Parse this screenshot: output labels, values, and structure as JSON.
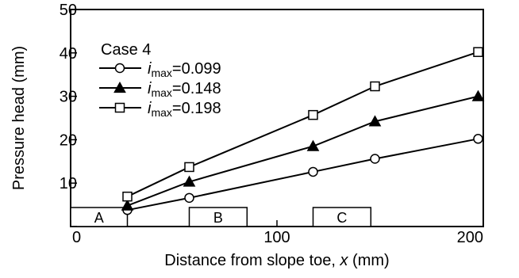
{
  "chart_data": {
    "type": "line",
    "title": "",
    "xlabel": "Distance from slope toe, x (mm)",
    "xlabel_prefix": "Distance from slope toe, ",
    "xlabel_var": "x",
    "xlabel_suffix": " (mm)",
    "ylabel": "Pressure head (mm)",
    "xlim": [
      0,
      200
    ],
    "ylim": [
      0,
      50
    ],
    "x_ticks": [
      0,
      100,
      200
    ],
    "y_ticks": [
      0,
      10,
      20,
      30,
      40,
      50
    ],
    "x_tick_labels": [
      "0",
      "100",
      "200"
    ],
    "y_tick_labels": [
      "",
      "10",
      "20",
      "30",
      "40",
      "50"
    ],
    "grid": false,
    "legend_title": "Case 4",
    "legend_position": "top-left",
    "series": [
      {
        "name": "imax=0.099",
        "label_main": "i",
        "label_sub": "max",
        "label_tail": "=0.099",
        "marker": "circle-open",
        "x": [
          27.5,
          57.5,
          117.5,
          147.5,
          197.5
        ],
        "y": [
          3.8,
          6.6,
          12.6,
          15.6,
          20.2
        ]
      },
      {
        "name": "imax=0.148",
        "label_main": "i",
        "label_sub": "max",
        "label_tail": "=0.148",
        "marker": "triangle-filled",
        "x": [
          27.5,
          57.5,
          117.5,
          147.5,
          197.5
        ],
        "y": [
          4.8,
          10.3,
          18.5,
          24.2,
          30.0
        ]
      },
      {
        "name": "imax=0.198",
        "label_main": "i",
        "label_sub": "max",
        "label_tail": "=0.198",
        "marker": "square-open",
        "x": [
          27.5,
          57.5,
          117.5,
          147.5,
          197.5
        ],
        "y": [
          6.9,
          13.7,
          25.7,
          32.3,
          40.2
        ]
      }
    ],
    "zones": [
      {
        "label": "A",
        "x_start": 0,
        "x_end": 27.5
      },
      {
        "label": "B",
        "x_start": 57.5,
        "x_end": 85.5
      },
      {
        "label": "C",
        "x_start": 117.5,
        "x_end": 145.5
      }
    ]
  }
}
